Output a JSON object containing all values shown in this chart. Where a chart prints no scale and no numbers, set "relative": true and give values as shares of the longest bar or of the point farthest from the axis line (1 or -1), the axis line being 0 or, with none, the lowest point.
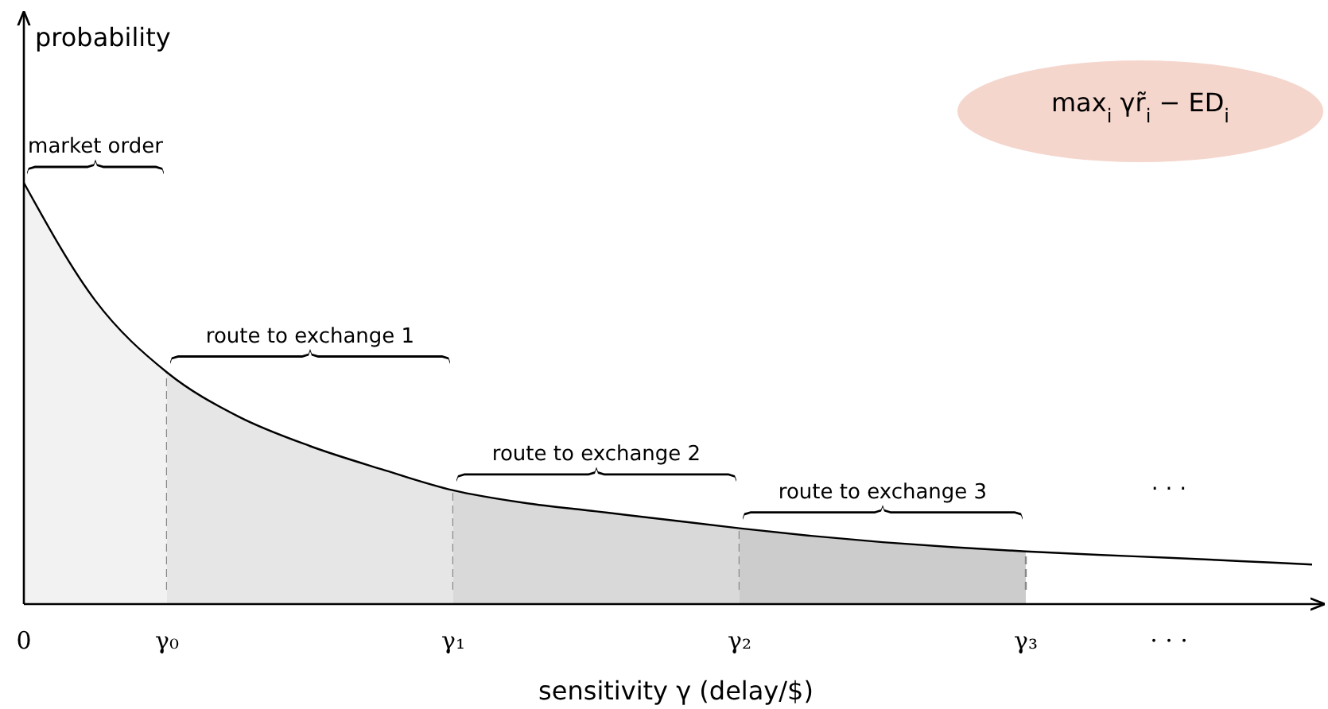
{
  "chart_data": {
    "type": "line",
    "relative": true,
    "tick_labels": "x",
    "line_style": "solid",
    "xlabel": "sensitivity γ (delay/$)",
    "categories": [
      "0",
      null,
      "γ₀",
      null,
      null,
      null,
      "γ₁",
      null,
      null,
      null,
      "γ₂",
      null,
      null,
      null,
      "γ₃",
      null,
      "· · ·",
      null,
      null
    ],
    "series": [
      {
        "color": "#000000",
        "values": [
          1,
          0.72,
          0.55,
          0.445,
          0.375,
          0.32,
          0.27,
          0.24,
          0.22,
          0.2,
          0.18,
          0.162,
          0.147,
          0.135,
          0.125,
          0.117,
          0.11,
          0.102,
          0.094
        ]
      }
    ],
    "bands": [
      {
        "axis": "x",
        "from": "0",
        "to": "γ₀",
        "label": "market order",
        "color": "#f2f2f2"
      },
      {
        "axis": "x",
        "from": "γ₀",
        "to": "γ₁",
        "label": "route to exchange 1",
        "color": "#e6e6e6"
      },
      {
        "axis": "x",
        "from": "γ₁",
        "to": "γ₂",
        "label": "route to exchange 2",
        "color": "#d9d9d9"
      },
      {
        "axis": "x",
        "from": "γ₂",
        "to": "γ₃",
        "label": "route to exchange 3",
        "color": "#cccccc"
      }
    ],
    "annotations": [
      "max$_{i}$  γr̃$_{i}$ − ED$_{i}$",
      "· · ·",
      "probability"
    ]
  }
}
